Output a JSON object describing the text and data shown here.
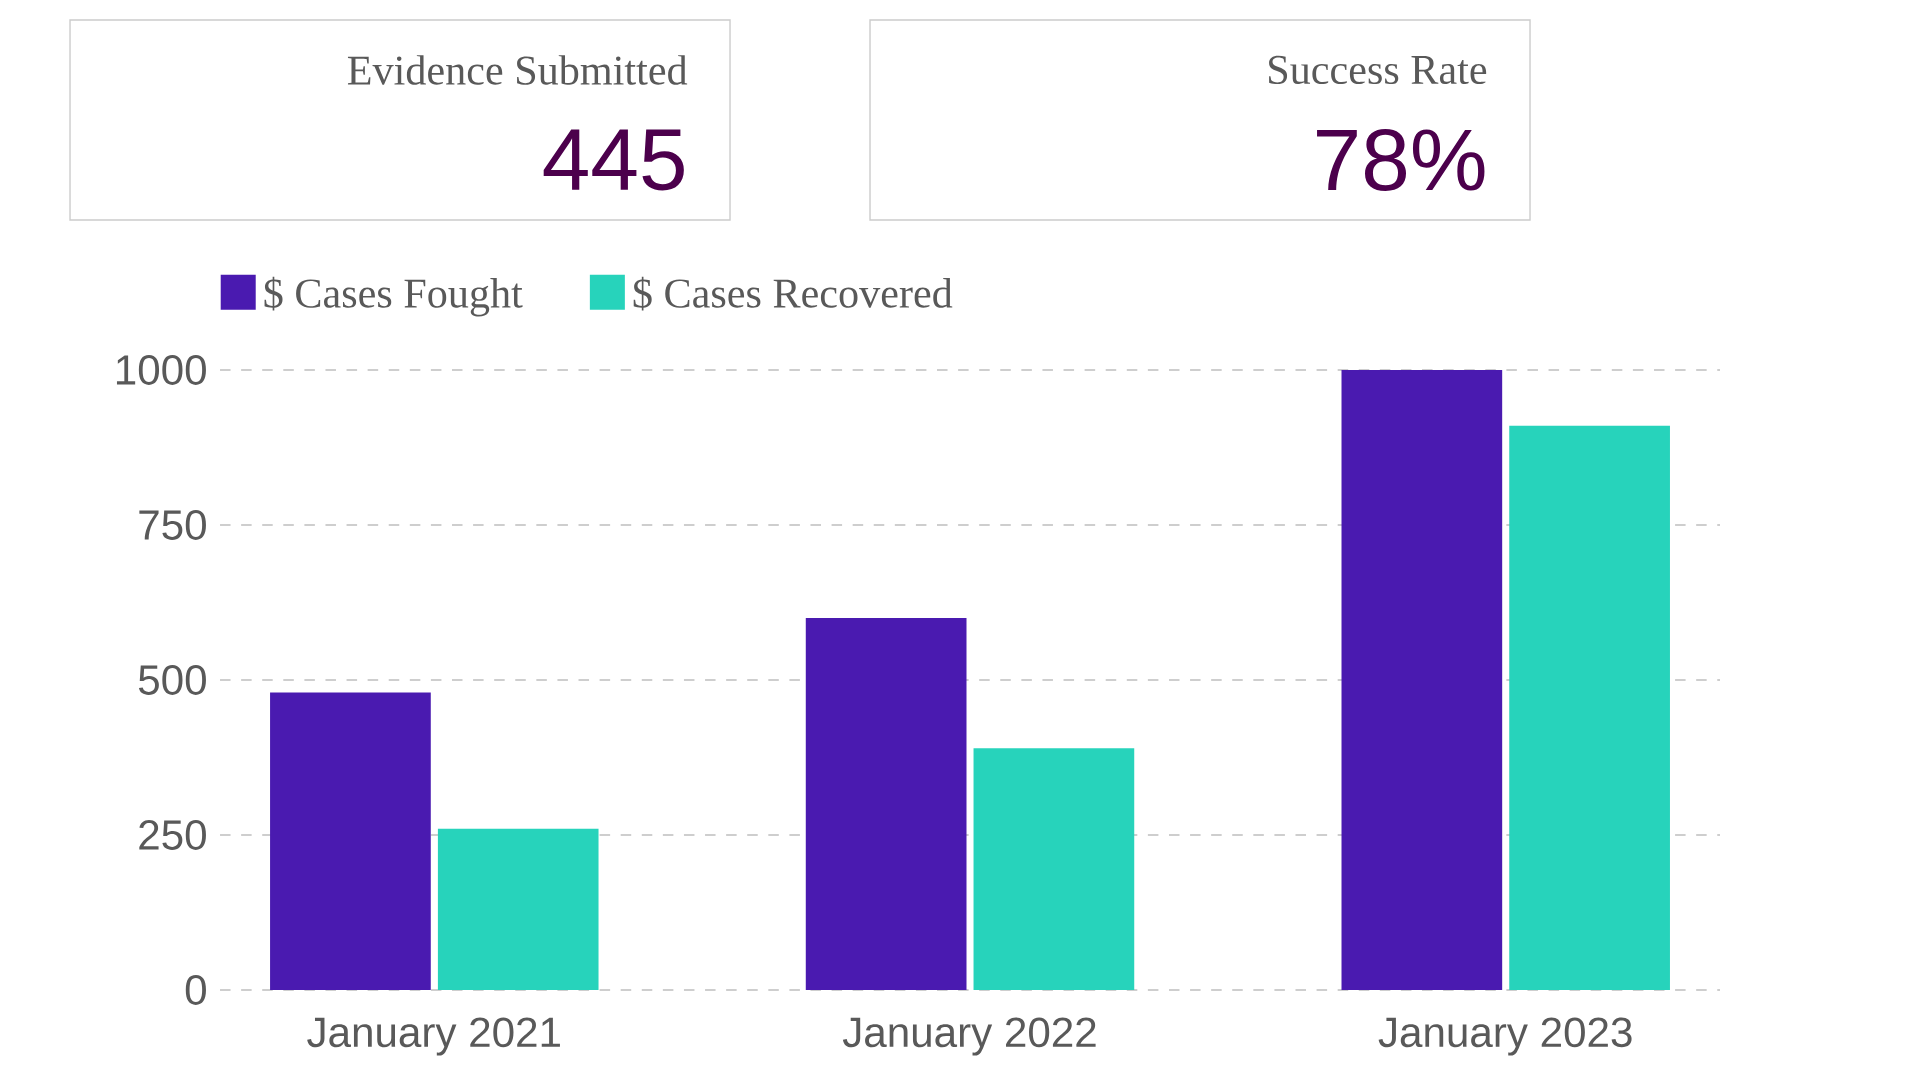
{
  "chart_data": [
    {
      "type": "other",
      "annotations": [
        "Evidence Submitted",
        "445",
        "Success Rate",
        "78%"
      ]
    },
    {
      "type": "bar",
      "categories": [
        "January 2021",
        "January 2022",
        "January 2023"
      ],
      "series": [
        {
          "name": "$ Cases Fought",
          "color": "#4a1ab0",
          "values": [
            480,
            600,
            1000
          ]
        },
        {
          "name": "$ Cases Recovered",
          "color": "#27d3bb",
          "values": [
            260,
            390,
            910
          ]
        }
      ],
      "ylim": [
        0,
        1000
      ],
      "yticks": [
        0,
        250,
        500,
        750,
        1000
      ],
      "grid": "y",
      "legend": "top left"
    }
  ]
}
